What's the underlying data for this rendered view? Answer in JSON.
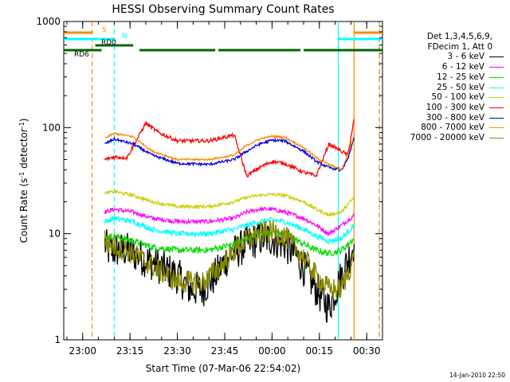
{
  "chart_data": {
    "type": "line",
    "title": "HESSI Observing Summary Count Rates",
    "xlabel": "Start Time (07-Mar-06 22:54:02)",
    "ylabel_parts": [
      "Count Rate (s",
      "-1",
      " detector",
      "-1",
      ")"
    ],
    "yscale": "log",
    "ylim": [
      1,
      1000
    ],
    "y_ticks": [
      1,
      10,
      100,
      1000
    ],
    "y_tick_labels": [
      "1",
      "10",
      "100",
      "1000"
    ],
    "x_unit": "minutes since 22:54:02",
    "xlim": [
      0,
      101
    ],
    "x_ticks": [
      6,
      21,
      36,
      51,
      66,
      81,
      96
    ],
    "x_tick_labels": [
      "23:00",
      "23:15",
      "23:30",
      "23:45",
      "00:00",
      "00:15",
      "00:30"
    ],
    "legend_header": [
      "Det 1,3,4,5,6,9,",
      "FDecim 1, Att 0"
    ],
    "series": [
      {
        "name": "3 - 6 keV",
        "color": "#000000",
        "noise": 0.35,
        "values": [
          [
            13,
            8
          ],
          [
            14,
            7
          ],
          [
            20,
            7
          ],
          [
            30,
            5
          ],
          [
            36,
            4
          ],
          [
            40,
            3
          ],
          [
            44,
            3
          ],
          [
            48,
            4
          ],
          [
            52,
            6
          ],
          [
            58,
            8
          ],
          [
            62,
            9
          ],
          [
            66,
            9
          ],
          [
            70,
            8
          ],
          [
            74,
            6
          ],
          [
            80,
            3
          ],
          [
            84,
            2
          ],
          [
            88,
            4
          ],
          [
            92,
            8
          ]
        ]
      },
      {
        "name": "6 - 12 keV",
        "color": "#ff00ff",
        "noise": 0.04,
        "values": [
          [
            13,
            16
          ],
          [
            16,
            17
          ],
          [
            22,
            16
          ],
          [
            28,
            14
          ],
          [
            36,
            13
          ],
          [
            46,
            13
          ],
          [
            54,
            14
          ],
          [
            58,
            16
          ],
          [
            62,
            17
          ],
          [
            66,
            17
          ],
          [
            70,
            16
          ],
          [
            76,
            14
          ],
          [
            80,
            12
          ],
          [
            84,
            10
          ],
          [
            88,
            12
          ],
          [
            92,
            15
          ]
        ]
      },
      {
        "name": "12 - 25 keV",
        "color": "#00dd00",
        "noise": 0.06,
        "values": [
          [
            13,
            9
          ],
          [
            16,
            9.5
          ],
          [
            22,
            8.5
          ],
          [
            28,
            7.5
          ],
          [
            36,
            7
          ],
          [
            46,
            7
          ],
          [
            54,
            8
          ],
          [
            58,
            9
          ],
          [
            62,
            10
          ],
          [
            66,
            10.5
          ],
          [
            70,
            10
          ],
          [
            76,
            8
          ],
          [
            80,
            7
          ],
          [
            84,
            6.5
          ],
          [
            88,
            7
          ],
          [
            92,
            9
          ]
        ]
      },
      {
        "name": "25 - 50 keV",
        "color": "#00ffff",
        "noise": 0.05,
        "values": [
          [
            13,
            13
          ],
          [
            16,
            14
          ],
          [
            22,
            13
          ],
          [
            28,
            11
          ],
          [
            36,
            10
          ],
          [
            46,
            10
          ],
          [
            54,
            11
          ],
          [
            58,
            12
          ],
          [
            62,
            13
          ],
          [
            66,
            13.5
          ],
          [
            70,
            13
          ],
          [
            76,
            11
          ],
          [
            80,
            9.5
          ],
          [
            84,
            8.5
          ],
          [
            88,
            9
          ],
          [
            92,
            12
          ]
        ]
      },
      {
        "name": "50 - 100 keV",
        "color": "#cccc00",
        "noise": 0.03,
        "values": [
          [
            13,
            24
          ],
          [
            16,
            25
          ],
          [
            22,
            23
          ],
          [
            28,
            20
          ],
          [
            36,
            18
          ],
          [
            46,
            18
          ],
          [
            54,
            20
          ],
          [
            58,
            22
          ],
          [
            62,
            23
          ],
          [
            66,
            23.5
          ],
          [
            70,
            23
          ],
          [
            76,
            20
          ],
          [
            80,
            17
          ],
          [
            84,
            15
          ],
          [
            88,
            16
          ],
          [
            92,
            22
          ]
        ]
      },
      {
        "name": "100 - 300 keV",
        "color": "#ff0000",
        "noise": 0.035,
        "values": [
          [
            13,
            50
          ],
          [
            16,
            53
          ],
          [
            20,
            52
          ],
          [
            26,
            110
          ],
          [
            30,
            90
          ],
          [
            36,
            75
          ],
          [
            46,
            75
          ],
          [
            54,
            85
          ],
          [
            58,
            35
          ],
          [
            62,
            42
          ],
          [
            66,
            48
          ],
          [
            70,
            46
          ],
          [
            76,
            38
          ],
          [
            80,
            35
          ],
          [
            84,
            70
          ],
          [
            88,
            60
          ],
          [
            90,
            55
          ],
          [
            92,
            120
          ]
        ]
      },
      {
        "name": "300 - 800 keV",
        "color": "#0000dd",
        "noise": 0.025,
        "values": [
          [
            13,
            70
          ],
          [
            16,
            78
          ],
          [
            22,
            70
          ],
          [
            28,
            55
          ],
          [
            36,
            46
          ],
          [
            46,
            45
          ],
          [
            54,
            50
          ],
          [
            58,
            60
          ],
          [
            62,
            70
          ],
          [
            66,
            76
          ],
          [
            70,
            75
          ],
          [
            76,
            60
          ],
          [
            80,
            48
          ],
          [
            84,
            42
          ],
          [
            88,
            40
          ],
          [
            90,
            50
          ],
          [
            92,
            80
          ]
        ]
      },
      {
        "name": "800 - 7000 keV",
        "color": "#ff8800",
        "noise": 0.018,
        "values": [
          [
            13,
            80
          ],
          [
            16,
            88
          ],
          [
            22,
            82
          ],
          [
            28,
            60
          ],
          [
            36,
            50
          ],
          [
            46,
            50
          ],
          [
            54,
            55
          ],
          [
            58,
            68
          ],
          [
            62,
            78
          ],
          [
            66,
            83
          ],
          [
            70,
            81
          ],
          [
            76,
            65
          ],
          [
            80,
            52
          ],
          [
            84,
            45
          ],
          [
            88,
            40
          ],
          [
            90,
            55
          ],
          [
            92,
            85
          ]
        ]
      },
      {
        "name": "7000 - 20000 keV",
        "color": "#888800",
        "noise": 0.22,
        "values": [
          [
            13,
            9
          ],
          [
            14,
            8
          ],
          [
            20,
            7
          ],
          [
            28,
            5
          ],
          [
            36,
            3.5
          ],
          [
            44,
            3.5
          ],
          [
            50,
            5
          ],
          [
            56,
            8
          ],
          [
            62,
            10
          ],
          [
            66,
            10.5
          ],
          [
            70,
            9.5
          ],
          [
            76,
            6
          ],
          [
            80,
            4
          ],
          [
            84,
            3
          ],
          [
            88,
            3
          ],
          [
            92,
            6
          ]
        ]
      }
    ],
    "status_bars": [
      {
        "label": "S",
        "color": "#ff8800",
        "segments": [
          [
            0,
            9
          ],
          [
            92,
            101
          ]
        ]
      },
      {
        "label": "N",
        "color": "#00ffff",
        "segments": [
          [
            0,
            16
          ],
          [
            87,
            101
          ]
        ]
      },
      {
        "label": "RD0",
        "color": "#006600",
        "segments": [
          [
            10,
            22
          ]
        ]
      },
      {
        "label": "RD6",
        "color": "#006600",
        "segments": [
          [
            0,
            12
          ],
          [
            24,
            48
          ],
          [
            49,
            75
          ],
          [
            76,
            101
          ]
        ]
      }
    ],
    "vertical_markers": [
      {
        "x": 9,
        "color": "#ff8800",
        "style": "dashed"
      },
      {
        "x": 16,
        "color": "#00ffff",
        "style": "dashed"
      },
      {
        "x": 87,
        "color": "#00ffff",
        "style": "solid"
      },
      {
        "x": 92,
        "color": "#ff8800",
        "style": "solid"
      },
      {
        "x": 100,
        "color": "#00ffff",
        "style": "dashed"
      },
      {
        "x": 100,
        "color": "#ff8800",
        "style": "dashed"
      }
    ],
    "footer_stamp": "14-Jan-2010 22:50"
  }
}
